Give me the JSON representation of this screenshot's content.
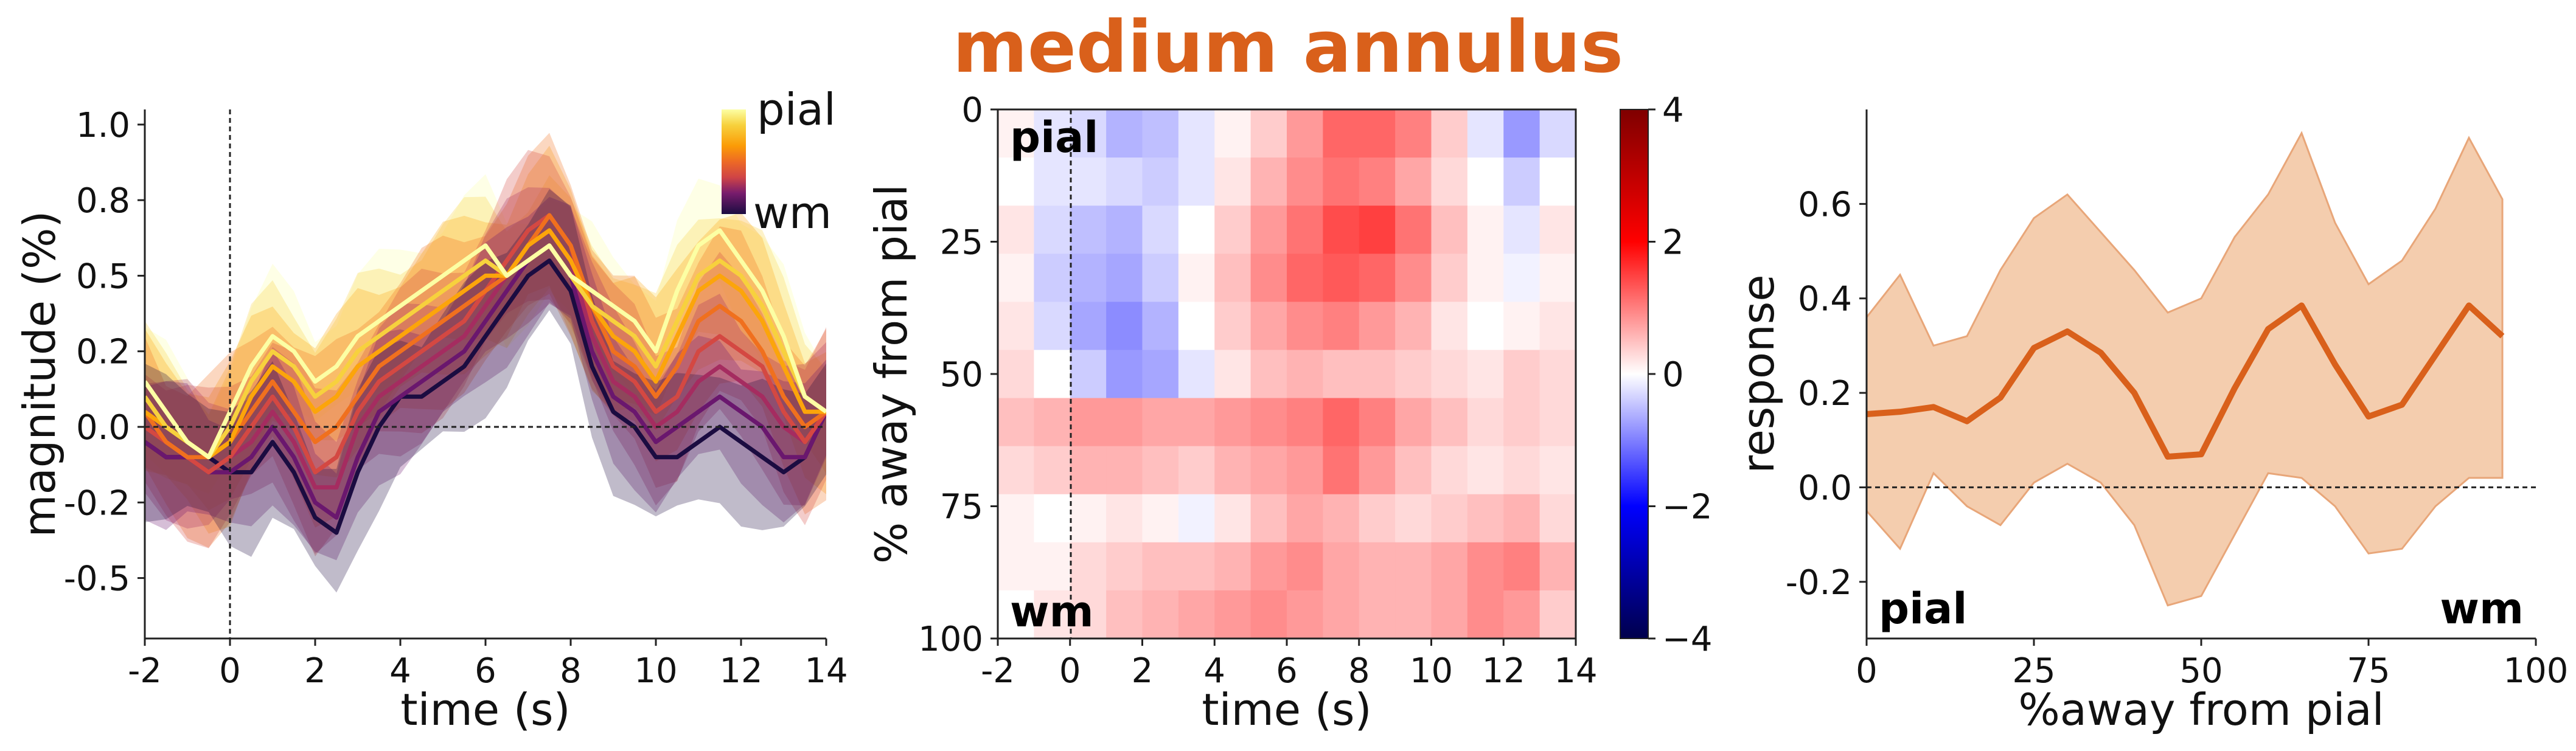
{
  "title": "medium annulus",
  "colors": {
    "title": "#d9601b",
    "accent": "#d9601b",
    "band": "#f2c4a0"
  },
  "chart_data": [
    {
      "type": "line",
      "xlabel": "time (s)",
      "ylabel": "magnitude (%)",
      "xlim": [
        -2,
        14
      ],
      "ylim": [
        -0.7,
        1.05
      ],
      "xticks": [
        "-2",
        "0",
        "2",
        "4",
        "6",
        "8",
        "10",
        "12",
        "14"
      ],
      "yticks": [
        "1.0",
        "0.8",
        "0.5",
        "0.2",
        "0.0",
        "-0.2",
        "-0.5"
      ],
      "yticks_at": [
        1.0,
        0.75,
        0.5,
        0.25,
        0.0,
        -0.25,
        -0.5
      ],
      "legend": {
        "top": "pial",
        "bottom": "wm",
        "colormap": "inferno",
        "placement": "top-right"
      },
      "reference_lines": {
        "x": 0,
        "y": 0
      },
      "x": [
        -2,
        -1.5,
        -1,
        -0.5,
        0,
        0.5,
        1,
        1.5,
        2,
        2.5,
        3,
        3.5,
        4,
        4.5,
        5,
        5.5,
        6,
        6.5,
        7,
        7.5,
        8,
        8.5,
        9,
        9.5,
        10,
        10.5,
        11,
        11.5,
        12,
        12.5,
        13,
        13.5,
        14
      ],
      "series": [
        {
          "values": [
            0.15,
            0.05,
            -0.05,
            -0.1,
            0.05,
            0.2,
            0.3,
            0.25,
            0.15,
            0.2,
            0.3,
            0.35,
            0.4,
            0.45,
            0.5,
            0.55,
            0.6,
            0.5,
            0.55,
            0.6,
            0.5,
            0.45,
            0.4,
            0.35,
            0.25,
            0.45,
            0.6,
            0.65,
            0.55,
            0.45,
            0.3,
            0.1,
            0.05
          ]
        },
        {
          "values": [
            0.1,
            0.0,
            -0.05,
            -0.1,
            0.0,
            0.15,
            0.25,
            0.2,
            0.1,
            0.15,
            0.25,
            0.3,
            0.35,
            0.4,
            0.45,
            0.5,
            0.55,
            0.5,
            0.55,
            0.6,
            0.5,
            0.4,
            0.35,
            0.3,
            0.2,
            0.35,
            0.5,
            0.55,
            0.5,
            0.4,
            0.25,
            0.1,
            0.05
          ]
        },
        {
          "values": [
            0.05,
            0.0,
            -0.05,
            -0.1,
            -0.05,
            0.1,
            0.2,
            0.15,
            0.05,
            0.1,
            0.2,
            0.25,
            0.3,
            0.35,
            0.4,
            0.45,
            0.5,
            0.5,
            0.6,
            0.65,
            0.55,
            0.4,
            0.3,
            0.25,
            0.15,
            0.3,
            0.45,
            0.5,
            0.45,
            0.35,
            0.2,
            0.05,
            0.05
          ]
        },
        {
          "values": [
            0.05,
            -0.05,
            -0.1,
            -0.1,
            -0.05,
            0.05,
            0.15,
            0.05,
            -0.05,
            0.0,
            0.1,
            0.2,
            0.25,
            0.3,
            0.35,
            0.4,
            0.45,
            0.5,
            0.6,
            0.7,
            0.6,
            0.4,
            0.25,
            0.2,
            0.1,
            0.2,
            0.35,
            0.4,
            0.35,
            0.25,
            0.1,
            0.0,
            0.05
          ]
        },
        {
          "values": [
            0.0,
            -0.05,
            -0.1,
            -0.15,
            -0.1,
            0.0,
            0.1,
            0.0,
            -0.15,
            -0.1,
            0.05,
            0.15,
            0.2,
            0.25,
            0.3,
            0.35,
            0.45,
            0.55,
            0.65,
            0.7,
            0.6,
            0.35,
            0.2,
            0.15,
            0.05,
            0.1,
            0.25,
            0.3,
            0.25,
            0.2,
            0.05,
            -0.05,
            0.05
          ]
        },
        {
          "values": [
            0.0,
            -0.05,
            -0.1,
            -0.15,
            -0.1,
            -0.05,
            0.05,
            -0.05,
            -0.2,
            -0.2,
            0.0,
            0.1,
            0.15,
            0.2,
            0.25,
            0.3,
            0.4,
            0.5,
            0.6,
            0.65,
            0.55,
            0.3,
            0.15,
            0.1,
            0.0,
            0.05,
            0.15,
            0.2,
            0.15,
            0.1,
            0.0,
            -0.05,
            0.05
          ]
        },
        {
          "values": [
            -0.05,
            -0.1,
            -0.1,
            -0.15,
            -0.15,
            -0.1,
            0.0,
            -0.1,
            -0.25,
            -0.3,
            -0.1,
            0.05,
            0.1,
            0.15,
            0.2,
            0.25,
            0.35,
            0.45,
            0.55,
            0.6,
            0.5,
            0.25,
            0.1,
            0.05,
            -0.05,
            0.0,
            0.05,
            0.1,
            0.05,
            0.0,
            -0.1,
            -0.1,
            0.05
          ]
        },
        {
          "values": [
            -0.05,
            -0.1,
            -0.1,
            -0.1,
            -0.15,
            -0.15,
            -0.05,
            -0.15,
            -0.3,
            -0.35,
            -0.15,
            0.0,
            0.1,
            0.1,
            0.15,
            0.2,
            0.3,
            0.4,
            0.5,
            0.55,
            0.45,
            0.2,
            0.05,
            0.0,
            -0.1,
            -0.1,
            -0.05,
            0.0,
            -0.05,
            -0.1,
            -0.15,
            -0.1,
            0.05
          ]
        }
      ]
    },
    {
      "type": "heatmap",
      "xlabel": "time (s)",
      "ylabel": "% away from pial",
      "xlim": [
        -2,
        14
      ],
      "ylim": [
        100,
        0
      ],
      "xticks": [
        "-2",
        "0",
        "2",
        "4",
        "6",
        "8",
        "10",
        "12",
        "14"
      ],
      "yticks": [
        "0",
        "25",
        "50",
        "75",
        "100"
      ],
      "annotations": [
        "pial",
        "wm"
      ],
      "colorbar": {
        "min": -4,
        "max": 4,
        "ticks": [
          "4",
          "2",
          "0",
          "−2",
          "−4"
        ],
        "colormap": "seismic"
      },
      "reference_lines": {
        "x": 0
      },
      "rows_depth_percent": [
        0,
        10,
        20,
        30,
        40,
        50,
        60,
        70,
        80,
        90,
        100
      ],
      "cols_time_s": [
        -2,
        -1,
        0,
        1,
        2,
        3,
        4,
        5,
        6,
        7,
        8,
        9,
        10,
        11,
        12,
        13
      ],
      "z": [
        [
          0.1,
          -0.2,
          -0.3,
          -0.6,
          -0.5,
          -0.2,
          0.1,
          0.4,
          0.8,
          1.2,
          1.2,
          1.0,
          0.4,
          -0.2,
          -0.8,
          -0.3
        ],
        [
          0.0,
          -0.2,
          -0.2,
          -0.3,
          -0.4,
          -0.2,
          0.2,
          0.6,
          0.9,
          1.1,
          1.0,
          0.7,
          0.3,
          0.0,
          -0.4,
          0.0
        ],
        [
          0.2,
          -0.3,
          -0.5,
          -0.6,
          -0.3,
          0.0,
          0.4,
          0.8,
          1.1,
          1.4,
          1.5,
          1.1,
          0.5,
          0.1,
          -0.2,
          0.2
        ],
        [
          0.1,
          -0.4,
          -0.6,
          -0.7,
          -0.4,
          0.1,
          0.5,
          0.9,
          1.2,
          1.3,
          1.2,
          0.9,
          0.4,
          0.1,
          -0.1,
          0.1
        ],
        [
          0.2,
          -0.3,
          -0.7,
          -0.9,
          -0.6,
          0.0,
          0.4,
          0.7,
          0.9,
          1.0,
          0.8,
          0.6,
          0.2,
          0.0,
          0.1,
          0.2
        ],
        [
          0.3,
          0.0,
          -0.4,
          -0.8,
          -0.7,
          -0.2,
          0.2,
          0.5,
          0.6,
          0.5,
          0.5,
          0.4,
          0.3,
          0.2,
          0.4,
          0.3
        ],
        [
          0.5,
          0.6,
          0.8,
          0.8,
          0.7,
          0.7,
          0.8,
          0.9,
          1.0,
          1.2,
          1.0,
          0.7,
          0.5,
          0.3,
          0.4,
          0.3
        ],
        [
          0.3,
          0.4,
          0.6,
          0.6,
          0.5,
          0.4,
          0.6,
          0.7,
          0.8,
          1.1,
          0.8,
          0.5,
          0.3,
          0.2,
          0.3,
          0.2
        ],
        [
          0.1,
          0.0,
          0.1,
          0.2,
          0.1,
          -0.1,
          0.2,
          0.5,
          0.7,
          0.6,
          0.4,
          0.3,
          0.4,
          0.5,
          0.6,
          0.3
        ],
        [
          0.1,
          0.1,
          0.3,
          0.4,
          0.5,
          0.5,
          0.6,
          0.8,
          0.9,
          0.7,
          0.6,
          0.6,
          0.7,
          0.9,
          1.0,
          0.6
        ],
        [
          0.0,
          0.2,
          0.3,
          0.5,
          0.6,
          0.7,
          0.8,
          0.9,
          0.8,
          0.7,
          0.6,
          0.6,
          0.7,
          0.9,
          0.8,
          0.4
        ]
      ]
    },
    {
      "type": "line",
      "xlabel": "%away from pial",
      "ylabel": "response",
      "xlim": [
        0,
        100
      ],
      "ylim": [
        -0.32,
        0.8
      ],
      "xticks": [
        "0",
        "25",
        "50",
        "75",
        "100"
      ],
      "yticks": [
        "0.6",
        "0.4",
        "0.2",
        "0.0",
        "-0.2"
      ],
      "annotations": [
        "pial",
        "wm"
      ],
      "reference_lines": {
        "y": 0
      },
      "x": [
        0,
        5,
        10,
        15,
        20,
        25,
        30,
        35,
        40,
        45,
        50,
        55,
        60,
        65,
        70,
        75,
        80,
        85,
        90,
        95
      ],
      "values": [
        0.155,
        0.16,
        0.17,
        0.14,
        0.19,
        0.295,
        0.33,
        0.285,
        0.2,
        0.065,
        0.07,
        0.21,
        0.335,
        0.385,
        0.26,
        0.15,
        0.175,
        0.28,
        0.385,
        0.32
      ],
      "band_upper": [
        0.36,
        0.45,
        0.3,
        0.32,
        0.46,
        0.57,
        0.62,
        0.54,
        0.46,
        0.37,
        0.4,
        0.53,
        0.62,
        0.75,
        0.56,
        0.43,
        0.48,
        0.59,
        0.74,
        0.61
      ],
      "band_lower": [
        -0.05,
        -0.13,
        0.03,
        -0.04,
        -0.08,
        0.01,
        0.05,
        0.01,
        -0.08,
        -0.25,
        -0.23,
        -0.1,
        0.03,
        0.02,
        -0.04,
        -0.14,
        -0.13,
        -0.04,
        0.02,
        0.02
      ]
    }
  ]
}
